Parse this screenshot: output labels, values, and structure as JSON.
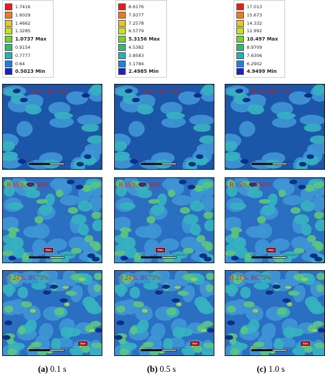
{
  "legends": [
    {
      "values": [
        "1.7416",
        "1.6029",
        "1.4662",
        "1.3285",
        "1.0737 Max",
        "0.9154",
        "0.7777",
        "0.64",
        "0.5023 Min"
      ],
      "colors": [
        "#e81c1c",
        "#f07a1c",
        "#f2c31c",
        "#c6e31c",
        "#6ed62a",
        "#27c070",
        "#16b5c8",
        "#1c7ff0",
        "#1c1cd8"
      ]
    },
    {
      "values": [
        "8.6176",
        "7.9377",
        "7.2578",
        "6.5779",
        "5.3156 Max",
        "4.5382",
        "3.8583",
        "3.1784",
        "2.4985 Min"
      ],
      "colors": [
        "#e81c1c",
        "#f07a1c",
        "#f2c31c",
        "#c6e31c",
        "#6ed62a",
        "#27c070",
        "#16b5c8",
        "#1c7ff0",
        "#1c1cd8"
      ]
    },
    {
      "values": [
        "17.013",
        "15.673",
        "14.332",
        "12.992",
        "10.497 Max",
        "8.9709",
        "7.6306",
        "6.2902",
        "4.9499 Min"
      ],
      "colors": [
        "#e81c1c",
        "#f07a1c",
        "#f2c31c",
        "#c6e31c",
        "#6ed62a",
        "#27c070",
        "#16b5c8",
        "#1c7ff0",
        "#1c1cd8"
      ]
    }
  ],
  "row_labels": [
    "B 4%, BC 33%",
    "B 15%, BC50%",
    "B 24%, BC75%"
  ],
  "captions": [
    {
      "letter": "(a)",
      "time": "0.1 s"
    },
    {
      "letter": "(b)",
      "time": "0.5 s"
    },
    {
      "letter": "(c)",
      "time": "1.0 s"
    }
  ],
  "marker_text": "Max",
  "scale_labels": [
    "0.000",
    "10.000 (mm)"
  ],
  "colors": {
    "deep_blue": "#1b56a8",
    "mid_blue": "#2a6fc2",
    "cyan_blue": "#3f95d6",
    "teal": "#36b2c0",
    "green": "#5cc67c",
    "yellow_green": "#9ad24a",
    "dark_blue": "#0c2f8a",
    "red": "#e11919"
  }
}
